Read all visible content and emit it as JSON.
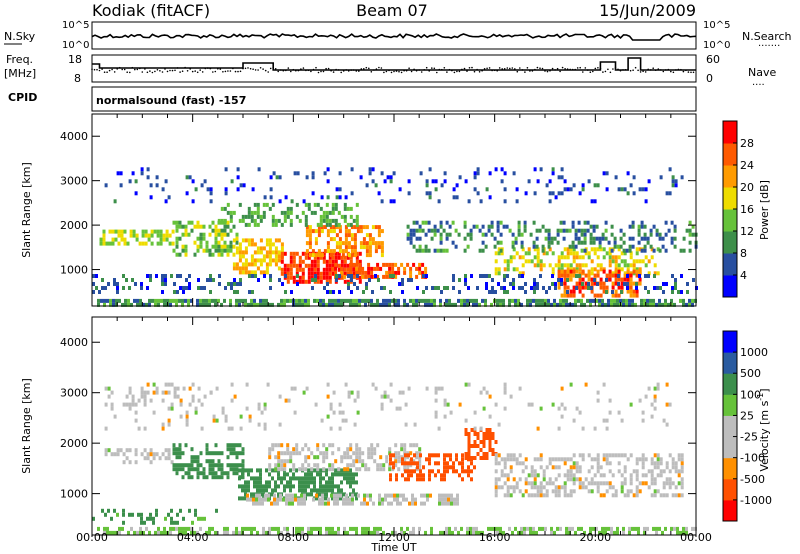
{
  "header": {
    "radar": "Kodiak (fitACF)",
    "beam": "Beam 07",
    "date": "15/Jun/2009"
  },
  "strip": {
    "nsky_label": "N.Sky",
    "nsky_ticks": [
      "10^5",
      "10^0"
    ],
    "nsearch_label": "N.Search",
    "freq_label_1": "Freq.",
    "freq_label_2": "[MHz]",
    "freq_ticks": [
      "18",
      "8"
    ],
    "nave_label": "Nave",
    "nave_ticks": [
      "60",
      "0"
    ],
    "cpid_label": "CPID",
    "cpid_text": "normalsound (fast) -157"
  },
  "axes": {
    "ylabel": "Slant Range [km]",
    "xlabel": "Time UT",
    "yticks": [
      "1000",
      "2000",
      "3000",
      "4000"
    ],
    "xticks": [
      "00:00",
      "04:00",
      "08:00",
      "12:00",
      "16:00",
      "20:00",
      "00:00"
    ]
  },
  "colors": {
    "power": [
      "#0000ff",
      "#284fa0",
      "#3d8f4a",
      "#66c23a",
      "#eedc00",
      "#ff9b00",
      "#ff5a00",
      "#ff0000"
    ],
    "velocity": [
      "#ff0000",
      "#ff5000",
      "#ff9000",
      "#bdbdbd",
      "#bdbdbd",
      "#66c23a",
      "#3c8f4c",
      "#2a5ba0",
      "#0000ff"
    ],
    "ground_scatter": "#bdbdbd"
  },
  "chart_data": [
    {
      "type": "heatmap",
      "title": "Power",
      "ylabel": "Slant Range [km]",
      "xlabel": "",
      "x_unit": "hours UT",
      "xlim": [
        0,
        24
      ],
      "ylim": [
        180,
        4500
      ],
      "colorbar": {
        "label": "Power [dB]",
        "range": [
          0,
          32
        ],
        "ticks": [
          "4",
          "8",
          "12",
          "16",
          "20",
          "24",
          "28"
        ]
      },
      "regions": [
        {
          "t0": 0.2,
          "t1": 24.0,
          "r0": 200,
          "r1": 340,
          "value": 10,
          "density": 0.75
        },
        {
          "t0": 0.3,
          "t1": 3.2,
          "r0": 1600,
          "r1": 1900,
          "value": 16,
          "density": 0.55
        },
        {
          "t0": 3.2,
          "t1": 5.8,
          "r0": 1300,
          "r1": 2100,
          "value": 14,
          "density": 0.45
        },
        {
          "t0": 5.6,
          "t1": 7.6,
          "r0": 900,
          "r1": 1700,
          "value": 20,
          "density": 0.6
        },
        {
          "t0": 7.5,
          "t1": 10.6,
          "r0": 700,
          "r1": 1400,
          "value": 28,
          "density": 0.75
        },
        {
          "t0": 8.5,
          "t1": 11.5,
          "r0": 1350,
          "r1": 2000,
          "value": 22,
          "density": 0.6
        },
        {
          "t0": 9.5,
          "t1": 13.2,
          "r0": 850,
          "r1": 1150,
          "value": 26,
          "density": 0.7
        },
        {
          "t0": 5.0,
          "t1": 10.5,
          "r0": 2000,
          "r1": 2500,
          "value": 12,
          "density": 0.4
        },
        {
          "t0": 0.5,
          "t1": 23.5,
          "r0": 2500,
          "r1": 3300,
          "value": 5,
          "density": 0.1
        },
        {
          "t0": 16.0,
          "t1": 22.5,
          "r0": 900,
          "r1": 1500,
          "value": 18,
          "density": 0.45
        },
        {
          "t0": 18.5,
          "t1": 21.8,
          "r0": 450,
          "r1": 1000,
          "value": 26,
          "density": 0.65
        },
        {
          "t0": 12.5,
          "t1": 24.0,
          "r0": 1400,
          "r1": 2100,
          "value": 9,
          "density": 0.3
        },
        {
          "t0": 0.0,
          "t1": 24.0,
          "r0": 500,
          "r1": 900,
          "value": 6,
          "density": 0.25
        }
      ]
    },
    {
      "type": "heatmap",
      "title": "Velocity",
      "ylabel": "Slant Range [km]",
      "xlabel": "Time UT",
      "x_unit": "hours UT",
      "xlim": [
        0,
        24
      ],
      "ylim": [
        180,
        4500
      ],
      "colorbar": {
        "label": "Velocity [m s^-1]",
        "range": [
          -1000,
          1000
        ],
        "ticks": [
          "1000",
          "500",
          "100",
          "25",
          "-25",
          "-100",
          "-500",
          "-1000"
        ]
      },
      "regions": [
        {
          "t0": 0.2,
          "t1": 24.0,
          "r0": 200,
          "r1": 340,
          "value": 40,
          "density": 0.55
        },
        {
          "t0": 0.5,
          "t1": 3.2,
          "r0": 1600,
          "r1": 1900,
          "value": 0,
          "density": 0.45
        },
        {
          "t0": 0.5,
          "t1": 5.0,
          "r0": 2800,
          "r1": 3200,
          "value": 0,
          "density": 0.15
        },
        {
          "t0": 3.2,
          "t1": 6.0,
          "r0": 1300,
          "r1": 2000,
          "value": 150,
          "density": 0.55
        },
        {
          "t0": 5.8,
          "t1": 10.5,
          "r0": 900,
          "r1": 1500,
          "value": 200,
          "density": 0.65
        },
        {
          "t0": 7.0,
          "t1": 13.0,
          "r0": 1500,
          "r1": 2000,
          "value": 0,
          "density": 0.5
        },
        {
          "t0": 11.8,
          "t1": 15.2,
          "r0": 1300,
          "r1": 1800,
          "value": -300,
          "density": 0.45
        },
        {
          "t0": 14.8,
          "t1": 16.0,
          "r0": 1700,
          "r1": 2300,
          "value": -300,
          "density": 0.55
        },
        {
          "t0": 16.0,
          "t1": 23.5,
          "r0": 1000,
          "r1": 1800,
          "value": 0,
          "density": 0.45
        },
        {
          "t0": 6.0,
          "t1": 14.5,
          "r0": 800,
          "r1": 1000,
          "value": 0,
          "density": 0.6
        },
        {
          "t0": 0.0,
          "t1": 5.0,
          "r0": 450,
          "r1": 700,
          "value": 120,
          "density": 0.25
        },
        {
          "t0": 0.5,
          "t1": 23.0,
          "r0": 2300,
          "r1": 3200,
          "value": 0,
          "density": 0.08
        }
      ]
    }
  ]
}
